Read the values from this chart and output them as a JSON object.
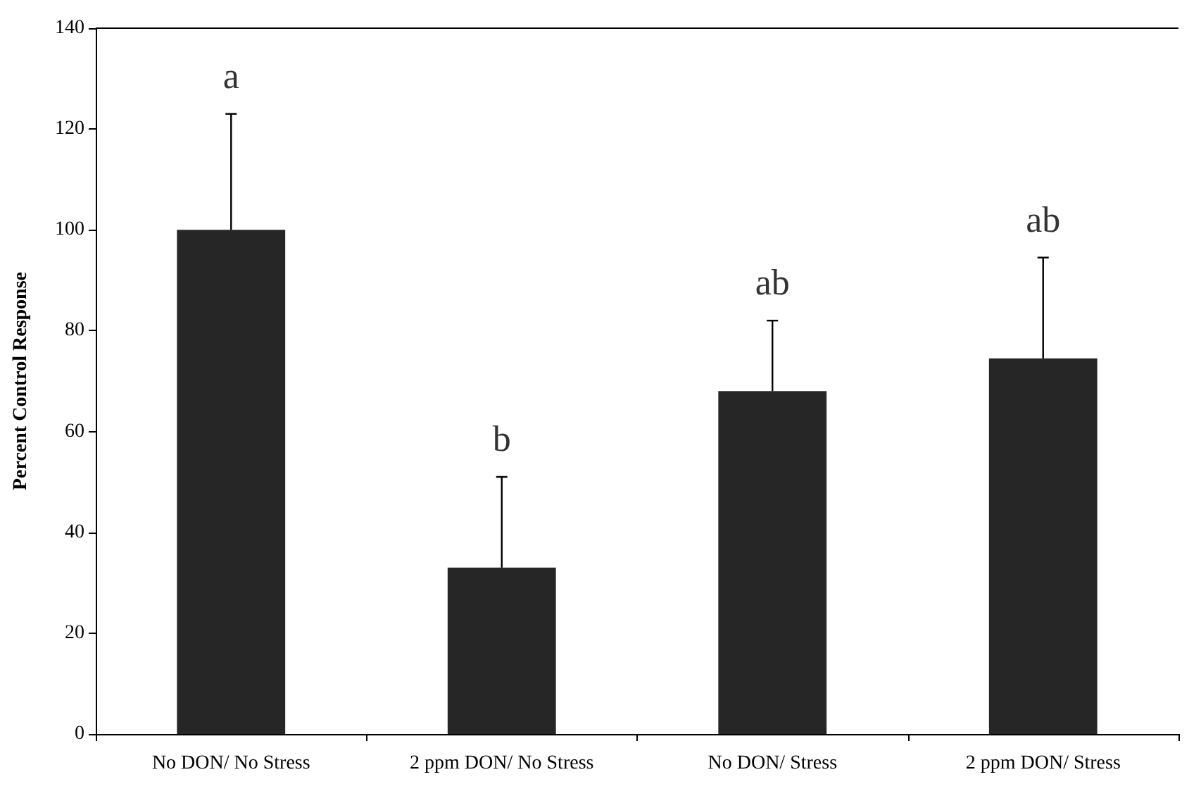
{
  "chart_data": {
    "type": "bar",
    "ylabel": "Percent Control Response",
    "categories": [
      "No DON/ No Stress",
      "2 ppm DON/ No Stress",
      "No DON/ Stress",
      "2 ppm DON/ Stress"
    ],
    "values": [
      100,
      33,
      68,
      74.5
    ],
    "errors": [
      [
        100,
        123
      ],
      [
        33,
        51
      ],
      [
        68,
        82
      ],
      [
        74.5,
        94.5
      ]
    ],
    "color": "#262626",
    "ylim": [
      0,
      140
    ],
    "yticks": [
      0,
      20,
      40,
      60,
      80,
      100,
      120,
      140
    ],
    "grid": false,
    "annotations": [
      "a",
      "b",
      "ab",
      "ab"
    ]
  }
}
